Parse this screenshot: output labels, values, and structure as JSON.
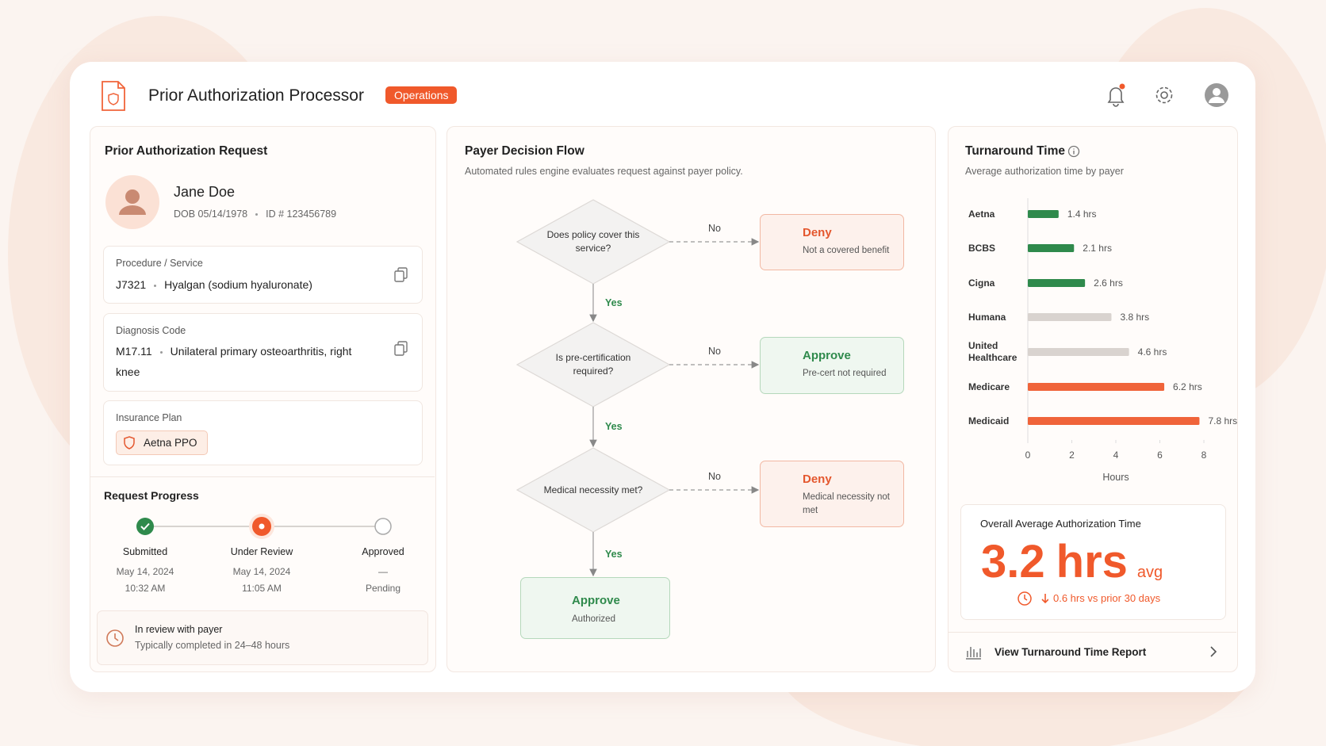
{
  "header": {
    "title": "Prior Authorization Processor",
    "badge": "Operations"
  },
  "request": {
    "title": "Prior Authorization Request",
    "patient": {
      "name": "Jane Doe",
      "dob": "DOB 05/14/1978",
      "id": "ID # 123456789"
    },
    "procedure": {
      "label": "Procedure / Service",
      "code": "J7321",
      "description": "Hyalgan (sodium hyaluronate)"
    },
    "diagnosis": {
      "label": "Diagnosis Code",
      "code": "M17.11",
      "description": "Unilateral primary osteoarthritis, right knee"
    },
    "insurance": {
      "label": "Insurance Plan",
      "plan": "Aetna PPO"
    }
  },
  "progress": {
    "title": "Request Progress",
    "steps": [
      {
        "label": "Submitted",
        "date": "May 14, 2024",
        "time": "10:32 AM",
        "status": "done"
      },
      {
        "label": "Under Review",
        "date": "May 14, 2024",
        "time": "11:05 AM",
        "status": "current"
      },
      {
        "label": "Approved",
        "date": "—",
        "time": "Pending",
        "status": "pending"
      }
    ],
    "note": {
      "title": "In review with payer",
      "detail": "Typically completed in 24–48 hours"
    }
  },
  "flow": {
    "title": "Payer Decision Flow",
    "subtitle": "Automated rules engine evaluates request against payer policy.",
    "decisions": [
      {
        "question": "Does policy cover this service?",
        "no_label": "No",
        "yes_label": "Yes",
        "outcome": {
          "title": "Deny",
          "detail": "Not a covered benefit",
          "kind": "deny"
        }
      },
      {
        "question": "Is pre-certification required?",
        "no_label": "No",
        "yes_label": "Yes",
        "outcome": {
          "title": "Approve",
          "detail": "Pre-cert not required",
          "kind": "approve"
        }
      },
      {
        "question": "Medical necessity met?",
        "no_label": "No",
        "yes_label": "Yes",
        "outcome": {
          "title": "Deny",
          "detail": "Medical necessity not met",
          "kind": "deny"
        }
      }
    ],
    "final": {
      "title": "Approve",
      "detail": "Authorized",
      "kind": "approve"
    }
  },
  "turnaround": {
    "title": "Turnaround Time",
    "subtitle": "Average authorization time by payer",
    "chart": {
      "type": "bar",
      "orientation": "horizontal",
      "categories": [
        "Aetna",
        "BCBS",
        "Cigna",
        "Humana",
        "United Healthcare",
        "Medicare",
        "Medicaid"
      ],
      "values": [
        1.4,
        2.1,
        2.6,
        3.8,
        4.6,
        6.2,
        7.8
      ],
      "value_labels": [
        "1.4 hrs",
        "2.1 hrs",
        "2.6 hrs",
        "3.8 hrs",
        "4.6 hrs",
        "6.2 hrs",
        "7.8 hrs"
      ],
      "colors": [
        "#2f8a4c",
        "#2f8a4c",
        "#2f8a4c",
        "#d9d3cf",
        "#d9d3cf",
        "#f0643a",
        "#f0643a"
      ],
      "xlim": [
        0,
        8
      ],
      "xticks": [
        0,
        2,
        4,
        6,
        8
      ],
      "x_label": "Hours"
    },
    "summary": {
      "label": "Overall Average Authorization Time",
      "value": 3.2,
      "unit": "hrs",
      "suffix": "avg",
      "change": "0.6 hrs vs prior 30 days"
    },
    "link": "View Turnaround Time Report"
  }
}
